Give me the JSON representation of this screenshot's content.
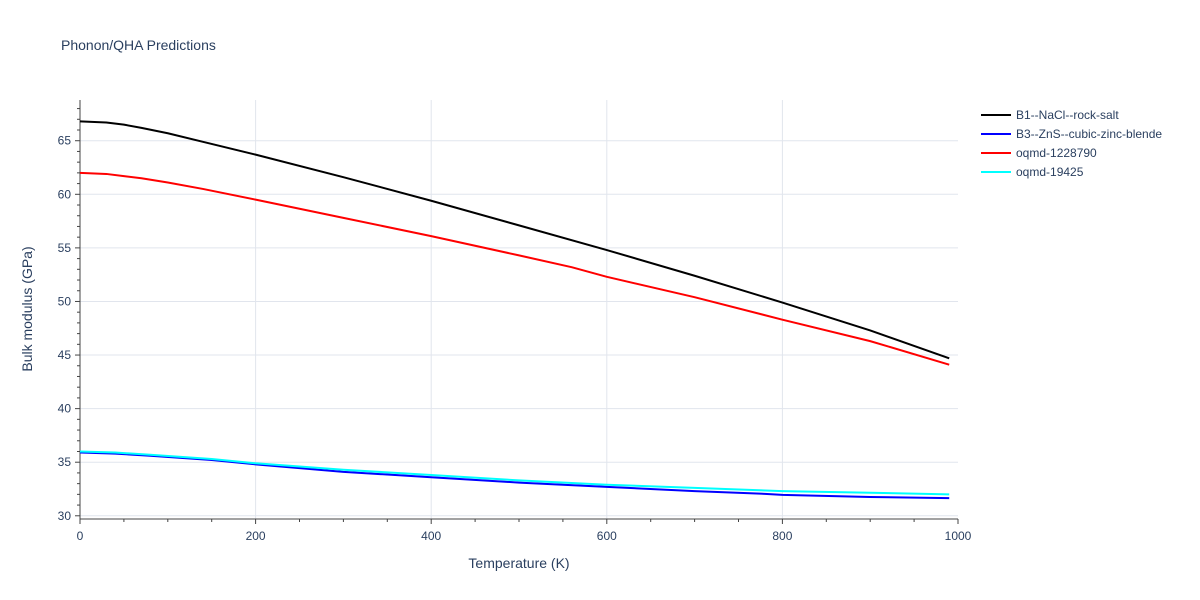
{
  "chart_data": {
    "type": "line",
    "title": "Phonon/QHA Predictions",
    "xlabel": "Temperature (K)",
    "ylabel": "Bulk modulus (GPa)",
    "xlim": [
      0,
      1000
    ],
    "ylim": [
      29.7,
      68.8
    ],
    "xticks": [
      0,
      200,
      400,
      600,
      800,
      1000
    ],
    "yticks": [
      30,
      35,
      40,
      45,
      50,
      55,
      60,
      65
    ],
    "grid": true,
    "legend_position": "right",
    "series": [
      {
        "name": "B1--NaCl--rock-salt",
        "color": "#000000",
        "x": [
          0,
          30,
          50,
          70,
          100,
          140,
          200,
          300,
          400,
          500,
          600,
          700,
          800,
          900,
          990
        ],
        "y": [
          66.8,
          66.7,
          66.5,
          66.2,
          65.7,
          64.9,
          63.7,
          61.6,
          59.4,
          57.1,
          54.8,
          52.4,
          49.9,
          47.3,
          44.7
        ]
      },
      {
        "name": "B3--ZnS--cubic-zinc-blende",
        "color": "#0000ff",
        "x": [
          0,
          40,
          80,
          150,
          200,
          300,
          400,
          500,
          600,
          700,
          780,
          800,
          900,
          990
        ],
        "y": [
          35.9,
          35.8,
          35.6,
          35.2,
          34.8,
          34.1,
          33.6,
          33.1,
          32.7,
          32.3,
          32.05,
          31.95,
          31.75,
          31.65
        ]
      },
      {
        "name": "oqmd-1228790",
        "color": "#ff0000",
        "x": [
          0,
          30,
          50,
          70,
          100,
          140,
          200,
          300,
          400,
          500,
          560,
          600,
          700,
          800,
          900,
          990
        ],
        "y": [
          62.0,
          61.9,
          61.7,
          61.5,
          61.1,
          60.5,
          59.5,
          57.8,
          56.1,
          54.3,
          53.2,
          52.3,
          50.4,
          48.3,
          46.3,
          44.1
        ]
      },
      {
        "name": "oqmd-19425",
        "color": "#00ffff",
        "x": [
          0,
          40,
          80,
          150,
          200,
          300,
          400,
          500,
          600,
          700,
          800,
          900,
          990
        ],
        "y": [
          36.0,
          35.9,
          35.7,
          35.3,
          34.9,
          34.3,
          33.8,
          33.3,
          32.9,
          32.6,
          32.3,
          32.15,
          32.0
        ]
      }
    ]
  }
}
